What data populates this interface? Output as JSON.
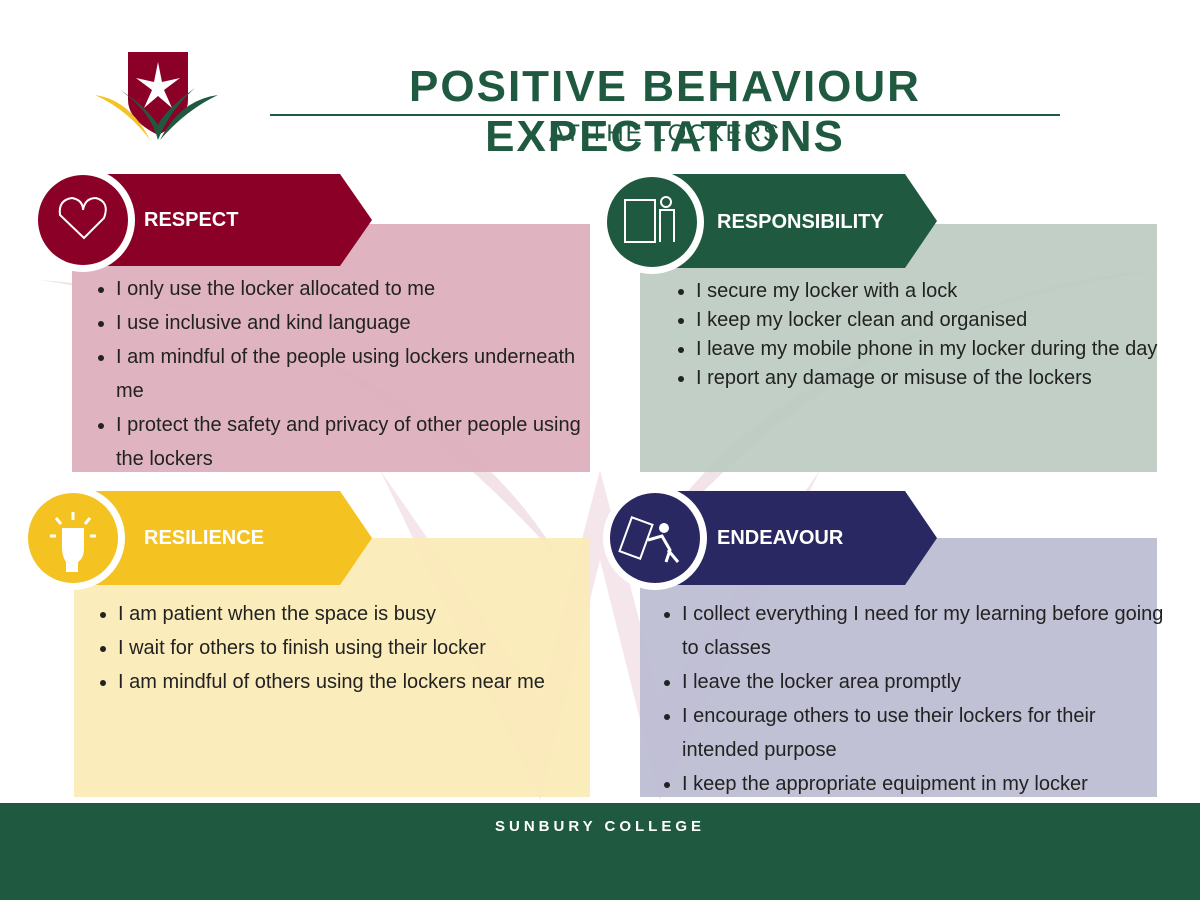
{
  "header": {
    "title": "POSITIVE BEHAVIOUR EXPECTATIONS",
    "subtitle": "AT THE LOCKERS"
  },
  "sections": [
    {
      "title": "RESPECT",
      "items": [
        "I only use the locker allocated to me",
        "I use inclusive and kind language",
        "I am mindful of the people using lockers underneath me",
        "I protect the safety and privacy of other people using the lockers"
      ]
    },
    {
      "title": "RESPONSIBILITY",
      "items": [
        "I secure my locker with a lock",
        "I keep my locker clean and organised",
        "I leave my mobile phone in my locker during the day",
        "I report any damage or misuse of the lockers"
      ]
    },
    {
      "title": "RESILIENCE",
      "items": [
        "I am patient when the space is busy",
        "I wait for others to finish using their locker",
        "I am mindful of others using the lockers near me"
      ]
    },
    {
      "title": "ENDEAVOUR",
      "items": [
        "I collect everything I need for my learning before going to classes",
        "I leave the locker area promptly",
        "I encourage others to use their lockers for their intended purpose",
        "I keep the appropriate equipment in my locker"
      ]
    }
  ],
  "footer": {
    "text": "SUNBURY COLLEGE"
  }
}
